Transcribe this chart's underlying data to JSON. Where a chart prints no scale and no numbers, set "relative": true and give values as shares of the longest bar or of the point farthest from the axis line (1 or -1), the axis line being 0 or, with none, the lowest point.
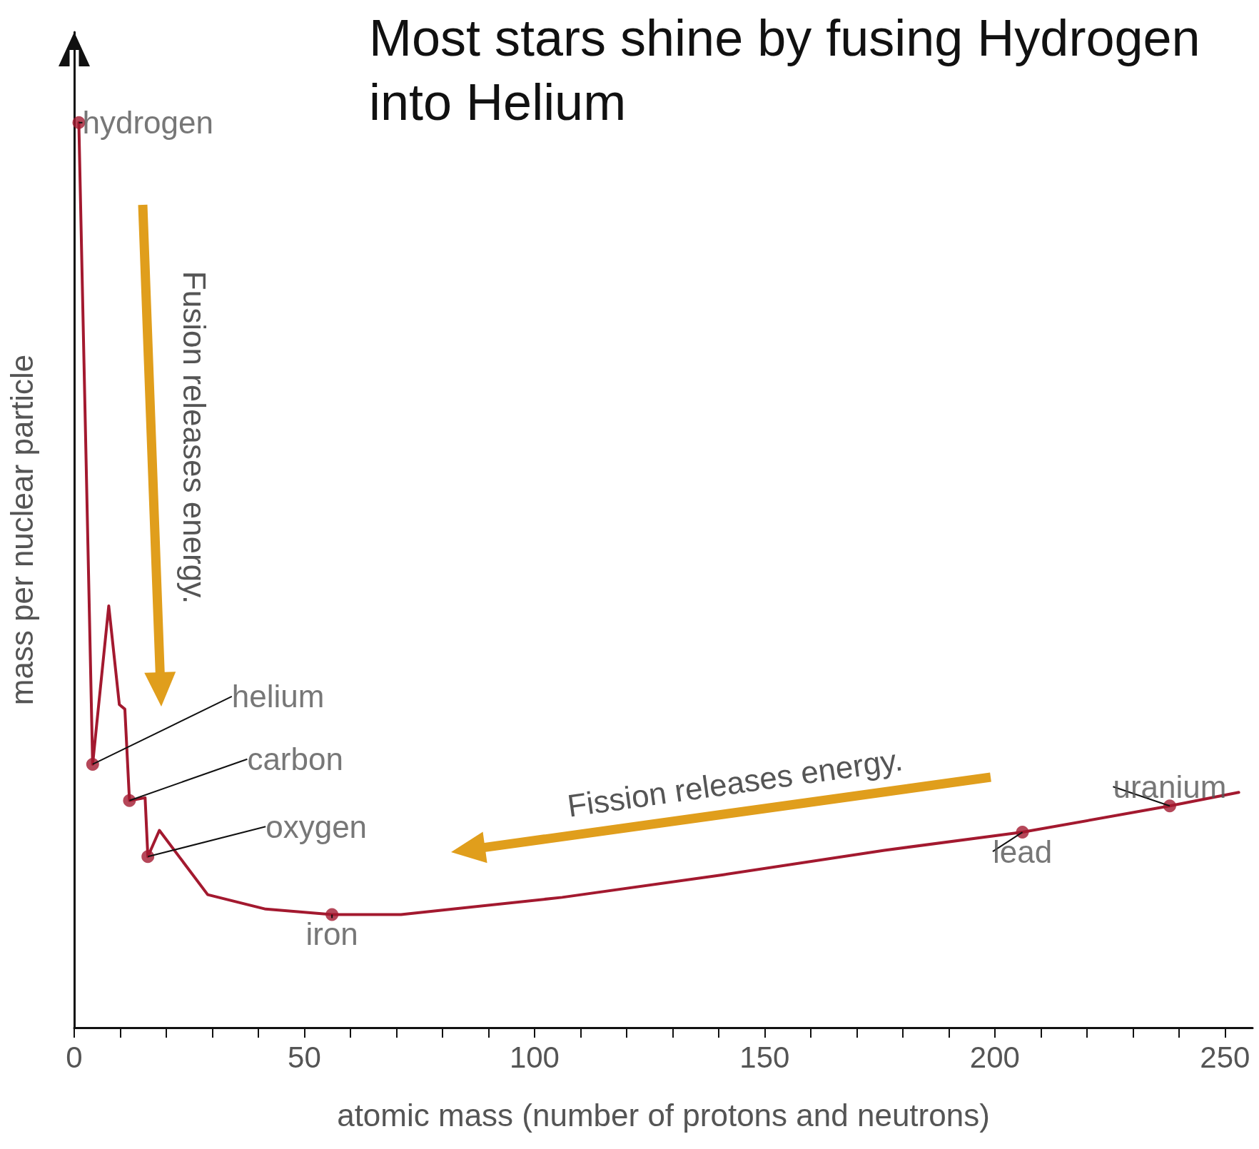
{
  "chart_data": {
    "type": "line",
    "title": "Most stars shine by fusing Hydrogen into Helium",
    "xlabel": "atomic mass (number of protons and neutrons)",
    "ylabel": "mass per nuclear particle",
    "relative": true,
    "xlim": [
      0,
      256
    ],
    "xticks": [
      0,
      {
        "value": 10,
        "label": null
      },
      {
        "value": 20,
        "label": null
      },
      {
        "value": 30,
        "label": null
      },
      {
        "value": 40,
        "label": null
      },
      50,
      {
        "value": 60,
        "label": null
      },
      {
        "value": 70,
        "label": null
      },
      {
        "value": 80,
        "label": null
      },
      {
        "value": 90,
        "label": null
      },
      100,
      {
        "value": 110,
        "label": null
      },
      {
        "value": 120,
        "label": null
      },
      {
        "value": 130,
        "label": null
      },
      {
        "value": 140,
        "label": null
      },
      150,
      {
        "value": 160,
        "label": null
      },
      {
        "value": 170,
        "label": null
      },
      {
        "value": 180,
        "label": null
      },
      {
        "value": 190,
        "label": null
      },
      200,
      {
        "value": 210,
        "label": null
      },
      {
        "value": 220,
        "label": null
      },
      {
        "value": 230,
        "label": null
      },
      {
        "value": 240,
        "label": null
      },
      250
    ],
    "grid": false,
    "series": [
      {
        "type": "line",
        "color": "#a3192f",
        "marker": "none",
        "x": [
          1,
          4,
          7.5,
          9.8,
          11,
          12,
          15.4,
          16,
          18.5,
          29,
          41.6,
          56,
          71,
          106,
          141,
          176,
          206,
          238,
          253
        ],
        "values": [
          1,
          0.291,
          0.466,
          0.357,
          0.352,
          0.251,
          0.254,
          0.189,
          0.218,
          0.147,
          0.131,
          0.125,
          0.125,
          0.144,
          0.169,
          0.196,
          0.216,
          0.245,
          0.26
        ]
      },
      {
        "type": "scatter",
        "color": "#a3192f",
        "marker": "circle",
        "x": [
          1,
          4,
          12,
          16,
          56,
          206,
          238
        ],
        "values": [
          1,
          0.291,
          0.251,
          0.189,
          0.125,
          0.216,
          0.245
        ]
      }
    ],
    "annotations": [
      {
        "text": "hydrogen",
        "x": 1,
        "y": 1
      },
      {
        "text": "helium",
        "x": 4,
        "y": 0.291
      },
      {
        "text": "carbon",
        "x": 12,
        "y": 0.251
      },
      {
        "text": "oxygen",
        "x": 16,
        "y": 0.189
      },
      {
        "text": "iron",
        "x": 56,
        "y": 0.125
      },
      {
        "text": "lead",
        "x": 206,
        "y": 0.216
      },
      {
        "text": "uranium",
        "x": 238,
        "y": 0.245
      },
      "Fusion releases energy.",
      "Fission releases energy."
    ]
  }
}
